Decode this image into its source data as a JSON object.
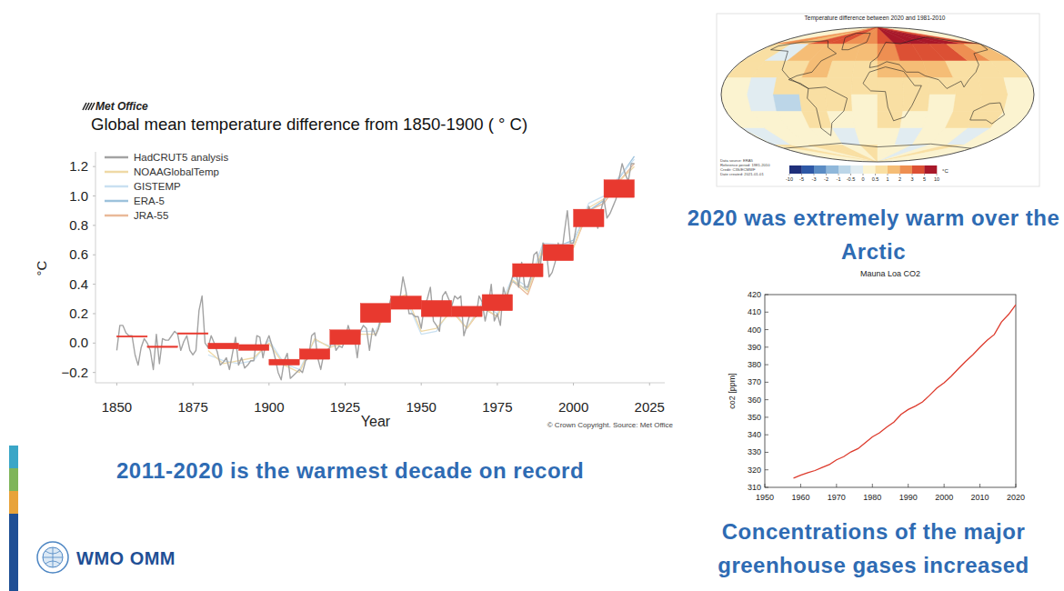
{
  "logo": "WMO OMM",
  "captions": [
    "2011-2020 is the warmest decade on record",
    "2020 was extremely warm over the Arctic",
    "Concentrations of the major greenhouse gases increased"
  ],
  "chart_data": [
    {
      "type": "line",
      "logo": "Met Office",
      "title": "Global mean temperature difference from 1850-1900 ( ° C)",
      "x_label": "Year",
      "y_label": "°C",
      "source": "© Crown Copyright. Source: Met Office",
      "legend": "upper left",
      "xlim": [
        1843,
        2030
      ],
      "xticks": [
        1850,
        1875,
        1900,
        1925,
        1950,
        1975,
        2000,
        2025
      ],
      "ylim": [
        -0.27,
        1.3
      ],
      "yticks": [
        {
          "value": -0.2,
          "label": "−0.2"
        },
        {
          "value": 0,
          "label": "0.0"
        },
        0.2,
        0.4,
        0.6,
        0.8,
        {
          "value": 1,
          "label": "1.0"
        },
        1.2
      ],
      "series": [
        {
          "name": "HadCRUT5 analysis",
          "color": "#a3a3a3",
          "x": [
            1850,
            1851,
            1852,
            1853,
            1854,
            1855,
            1856,
            1857,
            1858,
            1859,
            1860,
            1861,
            1862,
            1863,
            1864,
            1865,
            1866,
            1867,
            1868,
            1869,
            1870,
            1871,
            1872,
            1873,
            1874,
            1875,
            1876,
            1877,
            1878,
            1879,
            1880,
            1881,
            1882,
            1883,
            1884,
            1885,
            1886,
            1887,
            1888,
            1889,
            1890,
            1891,
            1892,
            1893,
            1894,
            1895,
            1896,
            1897,
            1898,
            1899,
            1900,
            1901,
            1902,
            1903,
            1904,
            1905,
            1906,
            1907,
            1908,
            1909,
            1910,
            1911,
            1912,
            1913,
            1914,
            1915,
            1916,
            1917,
            1918,
            1919,
            1920,
            1921,
            1922,
            1923,
            1924,
            1925,
            1926,
            1927,
            1928,
            1929,
            1930,
            1931,
            1932,
            1933,
            1934,
            1935,
            1936,
            1937,
            1938,
            1939,
            1940,
            1941,
            1942,
            1943,
            1944,
            1945,
            1946,
            1947,
            1948,
            1949,
            1950,
            1951,
            1952,
            1953,
            1954,
            1955,
            1956,
            1957,
            1958,
            1959,
            1960,
            1961,
            1962,
            1963,
            1964,
            1965,
            1966,
            1967,
            1968,
            1969,
            1970,
            1971,
            1972,
            1973,
            1974,
            1975,
            1976,
            1977,
            1978,
            1979,
            1980,
            1981,
            1982,
            1983,
            1984,
            1985,
            1986,
            1987,
            1988,
            1989,
            1990,
            1991,
            1992,
            1993,
            1994,
            1995,
            1996,
            1997,
            1998,
            1999,
            2000,
            2001,
            2002,
            2003,
            2004,
            2005,
            2006,
            2007,
            2008,
            2009,
            2010,
            2011,
            2012,
            2013,
            2014,
            2015,
            2016,
            2017,
            2018,
            2019,
            2020
          ],
          "values": [
            -0.05,
            0.12,
            0.12,
            0.07,
            0.05,
            0.05,
            -0.08,
            -0.15,
            -0.03,
            0.03,
            0,
            -0.05,
            -0.18,
            0.06,
            -0.14,
            0.03,
            0.02,
            0.02,
            0.05,
            0.08,
            0.06,
            -0.05,
            0.01,
            0.05,
            -0.05,
            -0.08,
            -0.05,
            0.22,
            0.32,
            0,
            -0.03,
            0.05,
            0,
            -0.06,
            -0.15,
            -0.13,
            -0.1,
            -0.18,
            -0.07,
            0.04,
            -0.15,
            -0.1,
            -0.17,
            -0.15,
            -0.12,
            -0.12,
            0.05,
            0.04,
            -0.1,
            0,
            0.05,
            -0.02,
            -0.1,
            -0.2,
            -0.25,
            -0.12,
            -0.07,
            -0.24,
            -0.22,
            -0.2,
            -0.18,
            -0.2,
            -0.12,
            -0.1,
            0.05,
            0.07,
            -0.1,
            -0.18,
            -0.07,
            -0.05,
            -0.03,
            0.05,
            -0.05,
            -0.02,
            -0.03,
            0.02,
            0.12,
            0.05,
            0.05,
            -0.1,
            0.08,
            0.12,
            0.1,
            -0.05,
            0.1,
            0.05,
            0.1,
            0.22,
            0.25,
            0.22,
            0.3,
            0.3,
            0.28,
            0.3,
            0.45,
            0.35,
            0.2,
            0.2,
            0.18,
            0.18,
            0.1,
            0.25,
            0.3,
            0.38,
            0.15,
            0.12,
            0.08,
            0.32,
            0.35,
            0.3,
            0.25,
            0.32,
            0.3,
            0.32,
            0.05,
            0.12,
            0.2,
            0.2,
            0.18,
            0.32,
            0.28,
            0.15,
            0.25,
            0.4,
            0.15,
            0.2,
            0.12,
            0.38,
            0.3,
            0.38,
            0.45,
            0.5,
            0.38,
            0.55,
            0.38,
            0.38,
            0.45,
            0.6,
            0.62,
            0.5,
            0.68,
            0.65,
            0.45,
            0.48,
            0.55,
            0.68,
            0.58,
            0.75,
            0.9,
            0.68,
            0.68,
            0.8,
            0.88,
            0.88,
            0.82,
            0.93,
            0.88,
            0.88,
            0.78,
            0.9,
            0.98,
            0.85,
            0.88,
            0.93,
            0.98,
            1.12,
            1.22,
            1.15,
            1.1,
            1.22,
            1.22
          ]
        },
        {
          "name": "NOAAGlobalTemp",
          "color": "#efd9a6",
          "x": [
            1880,
            1885,
            1890,
            1895,
            1900,
            1905,
            1910,
            1915,
            1920,
            1925,
            1930,
            1935,
            1940,
            1945,
            1950,
            1955,
            1960,
            1965,
            1970,
            1975,
            1980,
            1985,
            1990,
            1995,
            2000,
            2005,
            2010,
            2015,
            2020
          ],
          "values": [
            -0.05,
            -0.14,
            -0.12,
            -0.1,
            0,
            -0.15,
            -0.2,
            0.03,
            -0.03,
            0,
            0.06,
            0.06,
            0.28,
            0.33,
            0.08,
            0.1,
            0.22,
            0.1,
            0.25,
            0.18,
            0.43,
            0.35,
            0.65,
            0.65,
            0.65,
            0.92,
            0.98,
            1.1,
            1.2
          ]
        },
        {
          "name": "GISTEMP",
          "color": "#c9e0f1",
          "x": [
            1880,
            1885,
            1890,
            1895,
            1900,
            1905,
            1910,
            1915,
            1920,
            1925,
            1930,
            1935,
            1940,
            1945,
            1950,
            1955,
            1960,
            1965,
            1970,
            1975,
            1980,
            1985,
            1990,
            1995,
            2000,
            2005,
            2010,
            2015,
            2020
          ],
          "values": [
            -0.08,
            -0.12,
            -0.14,
            -0.12,
            0.02,
            -0.14,
            -0.18,
            0.02,
            -0.02,
            0.02,
            0.08,
            0.08,
            0.28,
            0.3,
            0.06,
            0.08,
            0.24,
            0.1,
            0.27,
            0.2,
            0.45,
            0.38,
            0.68,
            0.67,
            0.68,
            0.95,
            1,
            1.13,
            1.25
          ]
        },
        {
          "name": "ERA-5",
          "color": "#9dc2dc",
          "x": [
            1980,
            1985,
            1990,
            1995,
            2000,
            2005,
            2010,
            2015,
            2020
          ],
          "values": [
            0.42,
            0.36,
            0.63,
            0.66,
            0.7,
            0.9,
            0.97,
            1.12,
            1.27
          ]
        },
        {
          "name": "JRA-55",
          "color": "#e9b998",
          "x": [
            1960,
            1965,
            1970,
            1975,
            1980,
            1985,
            1990,
            1995,
            2000,
            2005,
            2010,
            2015,
            2020
          ],
          "values": [
            0.22,
            0.1,
            0.24,
            0.18,
            0.42,
            0.33,
            0.62,
            0.63,
            0.65,
            0.9,
            0.95,
            1.1,
            1.22
          ]
        }
      ],
      "decades": {
        "color": "#e8392f",
        "x_start": [
          1850,
          1860,
          1870,
          1880,
          1890,
          1900,
          1910,
          1920,
          1930,
          1940,
          1950,
          1960,
          1970,
          1980,
          1990,
          2000,
          2010
        ],
        "x_end": [
          1860,
          1870,
          1880,
          1890,
          1900,
          1910,
          1920,
          1930,
          1940,
          1950,
          1960,
          1970,
          1980,
          1990,
          2000,
          2010,
          2020
        ],
        "low": [
          0.04,
          -0.03,
          0.06,
          -0.04,
          -0.05,
          -0.15,
          -0.11,
          -0.01,
          0.14,
          0.23,
          0.18,
          0.18,
          0.22,
          0.45,
          0.56,
          0.79,
          0.99
        ],
        "high": [
          0.05,
          -0.02,
          0.07,
          0,
          -0.01,
          -0.11,
          -0.04,
          0.09,
          0.27,
          0.32,
          0.29,
          0.25,
          0.33,
          0.54,
          0.67,
          0.91,
          1.11
        ]
      }
    },
    {
      "type": "heatmap",
      "title": "Temperature difference between 2020 and 1981-2010",
      "notes": [
        "Data source: ERA5",
        "Reference period: 1981-2010",
        "Credit: C3S/ECMWF",
        "Date created: 2021-01-01"
      ],
      "unit": "°C",
      "color_ticks": [
        -10,
        -5,
        -3,
        -2,
        -1,
        -0.5,
        0,
        0.5,
        1,
        2,
        3,
        5,
        10
      ],
      "colors": [
        "#1f2f7a",
        "#2e58a6",
        "#5b8cc4",
        "#8fb7da",
        "#bcd6e8",
        "#e1ecf1",
        "#fbf3d0",
        "#f9dfa3",
        "#f5bd76",
        "#ee8f52",
        "#dc5034",
        "#a8182a"
      ],
      "cells": [
        [
          2,
          1,
          3,
          3,
          2,
          2,
          3,
          5,
          7,
          7,
          6,
          3
        ],
        [
          0.5,
          -0.5,
          1,
          1.5,
          1,
          1,
          2,
          3,
          4,
          3,
          2,
          1
        ],
        [
          0.5,
          0.5,
          0.8,
          1,
          0.6,
          0.5,
          1,
          1.2,
          1,
          0.8,
          0.8,
          0.5
        ],
        [
          0.3,
          -0.3,
          0.5,
          0.6,
          0.5,
          0.6,
          0.6,
          0.7,
          0.6,
          0.5,
          0.5,
          0.3
        ],
        [
          0.2,
          -0.5,
          -0.8,
          0.7,
          0.5,
          0.3,
          0.5,
          0.6,
          0.4,
          0.6,
          0.5,
          0.2
        ],
        [
          0.4,
          0.2,
          0.3,
          0.6,
          0.3,
          0.3,
          0.5,
          0.4,
          0.3,
          0.8,
          0.7,
          0.4
        ],
        [
          -0.3,
          0.2,
          0.4,
          0.3,
          -0.2,
          0.2,
          0.3,
          -0.4,
          0.2,
          0.3,
          -0.2,
          0.1
        ],
        [
          0.5,
          0.3,
          0.8,
          0.5,
          0.3,
          0.5,
          0.3,
          0.2,
          -0.3,
          0.3,
          0.5,
          0.4
        ]
      ]
    },
    {
      "type": "line",
      "title": "Mauna Loa CO2",
      "y_label": "co2 [ppm]",
      "xlim": [
        1950,
        2020
      ],
      "xticks": [
        1950,
        1960,
        1970,
        1980,
        1990,
        2000,
        2010,
        2020
      ],
      "ylim": [
        310,
        420
      ],
      "yticks": [
        310,
        320,
        330,
        340,
        350,
        360,
        370,
        380,
        390,
        400,
        410,
        420
      ],
      "series": [
        {
          "color": "#dd3a2c",
          "x": [
            1958,
            1960,
            1962,
            1964,
            1966,
            1968,
            1970,
            1972,
            1974,
            1976,
            1978,
            1980,
            1982,
            1984,
            1986,
            1988,
            1990,
            1992,
            1994,
            1996,
            1998,
            2000,
            2002,
            2004,
            2006,
            2008,
            2010,
            2012,
            2014,
            2016,
            2018,
            2020
          ],
          "values": [
            315.3,
            316.9,
            318.4,
            319.6,
            321.4,
            323.0,
            325.7,
            327.5,
            330.2,
            332.1,
            335.4,
            338.8,
            341.1,
            344.4,
            347.2,
            351.6,
            354.4,
            356.4,
            358.8,
            362.6,
            366.7,
            369.7,
            373.4,
            377.7,
            381.9,
            385.6,
            389.9,
            393.9,
            397.2,
            404.4,
            408.7,
            414.2
          ]
        }
      ]
    }
  ]
}
